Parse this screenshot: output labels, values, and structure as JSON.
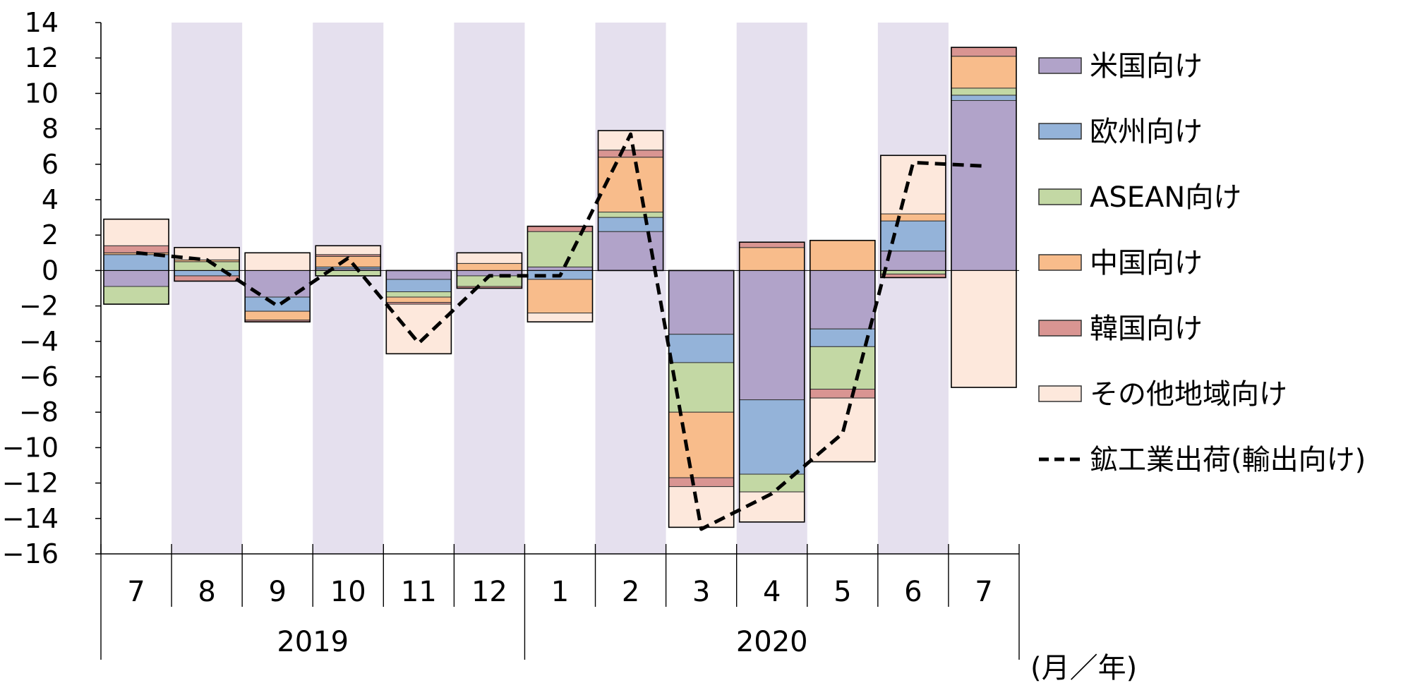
{
  "chart_data": {
    "type": "bar",
    "stacked": true,
    "ylim": [
      -16,
      14
    ],
    "ytick_step": 2,
    "grid": false,
    "legend_position": "right",
    "categories": [
      "7",
      "8",
      "9",
      "10",
      "11",
      "12",
      "1",
      "2",
      "3",
      "4",
      "5",
      "6",
      "7"
    ],
    "year_groups": [
      {
        "label": "2019",
        "start": 0,
        "end": 5
      },
      {
        "label": "2020",
        "start": 6,
        "end": 12
      }
    ],
    "shaded_columns": [
      1,
      3,
      5,
      7,
      9,
      11
    ],
    "shade_color": "#e5e0ee",
    "unit_label": "(月／年)",
    "series": [
      {
        "name": "米国向け",
        "color": "#b1a3c9",
        "values": [
          -0.9,
          0.0,
          -1.5,
          0.1,
          -0.5,
          -0.3,
          0.2,
          2.2,
          -3.6,
          -7.3,
          -3.3,
          1.1,
          9.6
        ]
      },
      {
        "name": "欧州向け",
        "color": "#94b3d9",
        "values": [
          0.9,
          -0.3,
          -0.8,
          0.1,
          -0.7,
          0.0,
          -0.5,
          0.8,
          -1.6,
          -4.2,
          -1.0,
          1.7,
          0.3
        ]
      },
      {
        "name": "ASEAN向け",
        "color": "#c3d8a4",
        "values": [
          -1.0,
          0.5,
          0.0,
          -0.3,
          -0.3,
          -0.6,
          2.0,
          0.3,
          -2.8,
          -1.0,
          -2.4,
          -0.2,
          0.4
        ]
      },
      {
        "name": "中国向け",
        "color": "#f8bc8b",
        "values": [
          0.1,
          0.1,
          -0.5,
          0.6,
          -0.3,
          0.4,
          -1.9,
          3.1,
          -3.7,
          1.3,
          1.7,
          0.4,
          1.8
        ]
      },
      {
        "name": "韓国向け",
        "color": "#d99592",
        "values": [
          0.4,
          -0.3,
          -0.1,
          0.1,
          -0.1,
          -0.1,
          0.3,
          0.4,
          -0.5,
          0.3,
          -0.5,
          -0.2,
          0.5
        ]
      },
      {
        "name": "その他地域向け",
        "color": "#fde8dc",
        "values": [
          1.5,
          0.7,
          1.0,
          0.5,
          -2.8,
          0.6,
          -0.5,
          1.1,
          -2.3,
          -1.7,
          -3.6,
          3.3,
          -6.6
        ]
      }
    ],
    "line_series": {
      "name": "鉱工業出荷(輸出向け)",
      "color": "#000000",
      "values": [
        1.0,
        0.6,
        -2.0,
        0.7,
        -4.1,
        -0.3,
        -0.3,
        7.7,
        -14.6,
        -12.6,
        -9.2,
        6.1,
        5.9
      ]
    }
  }
}
